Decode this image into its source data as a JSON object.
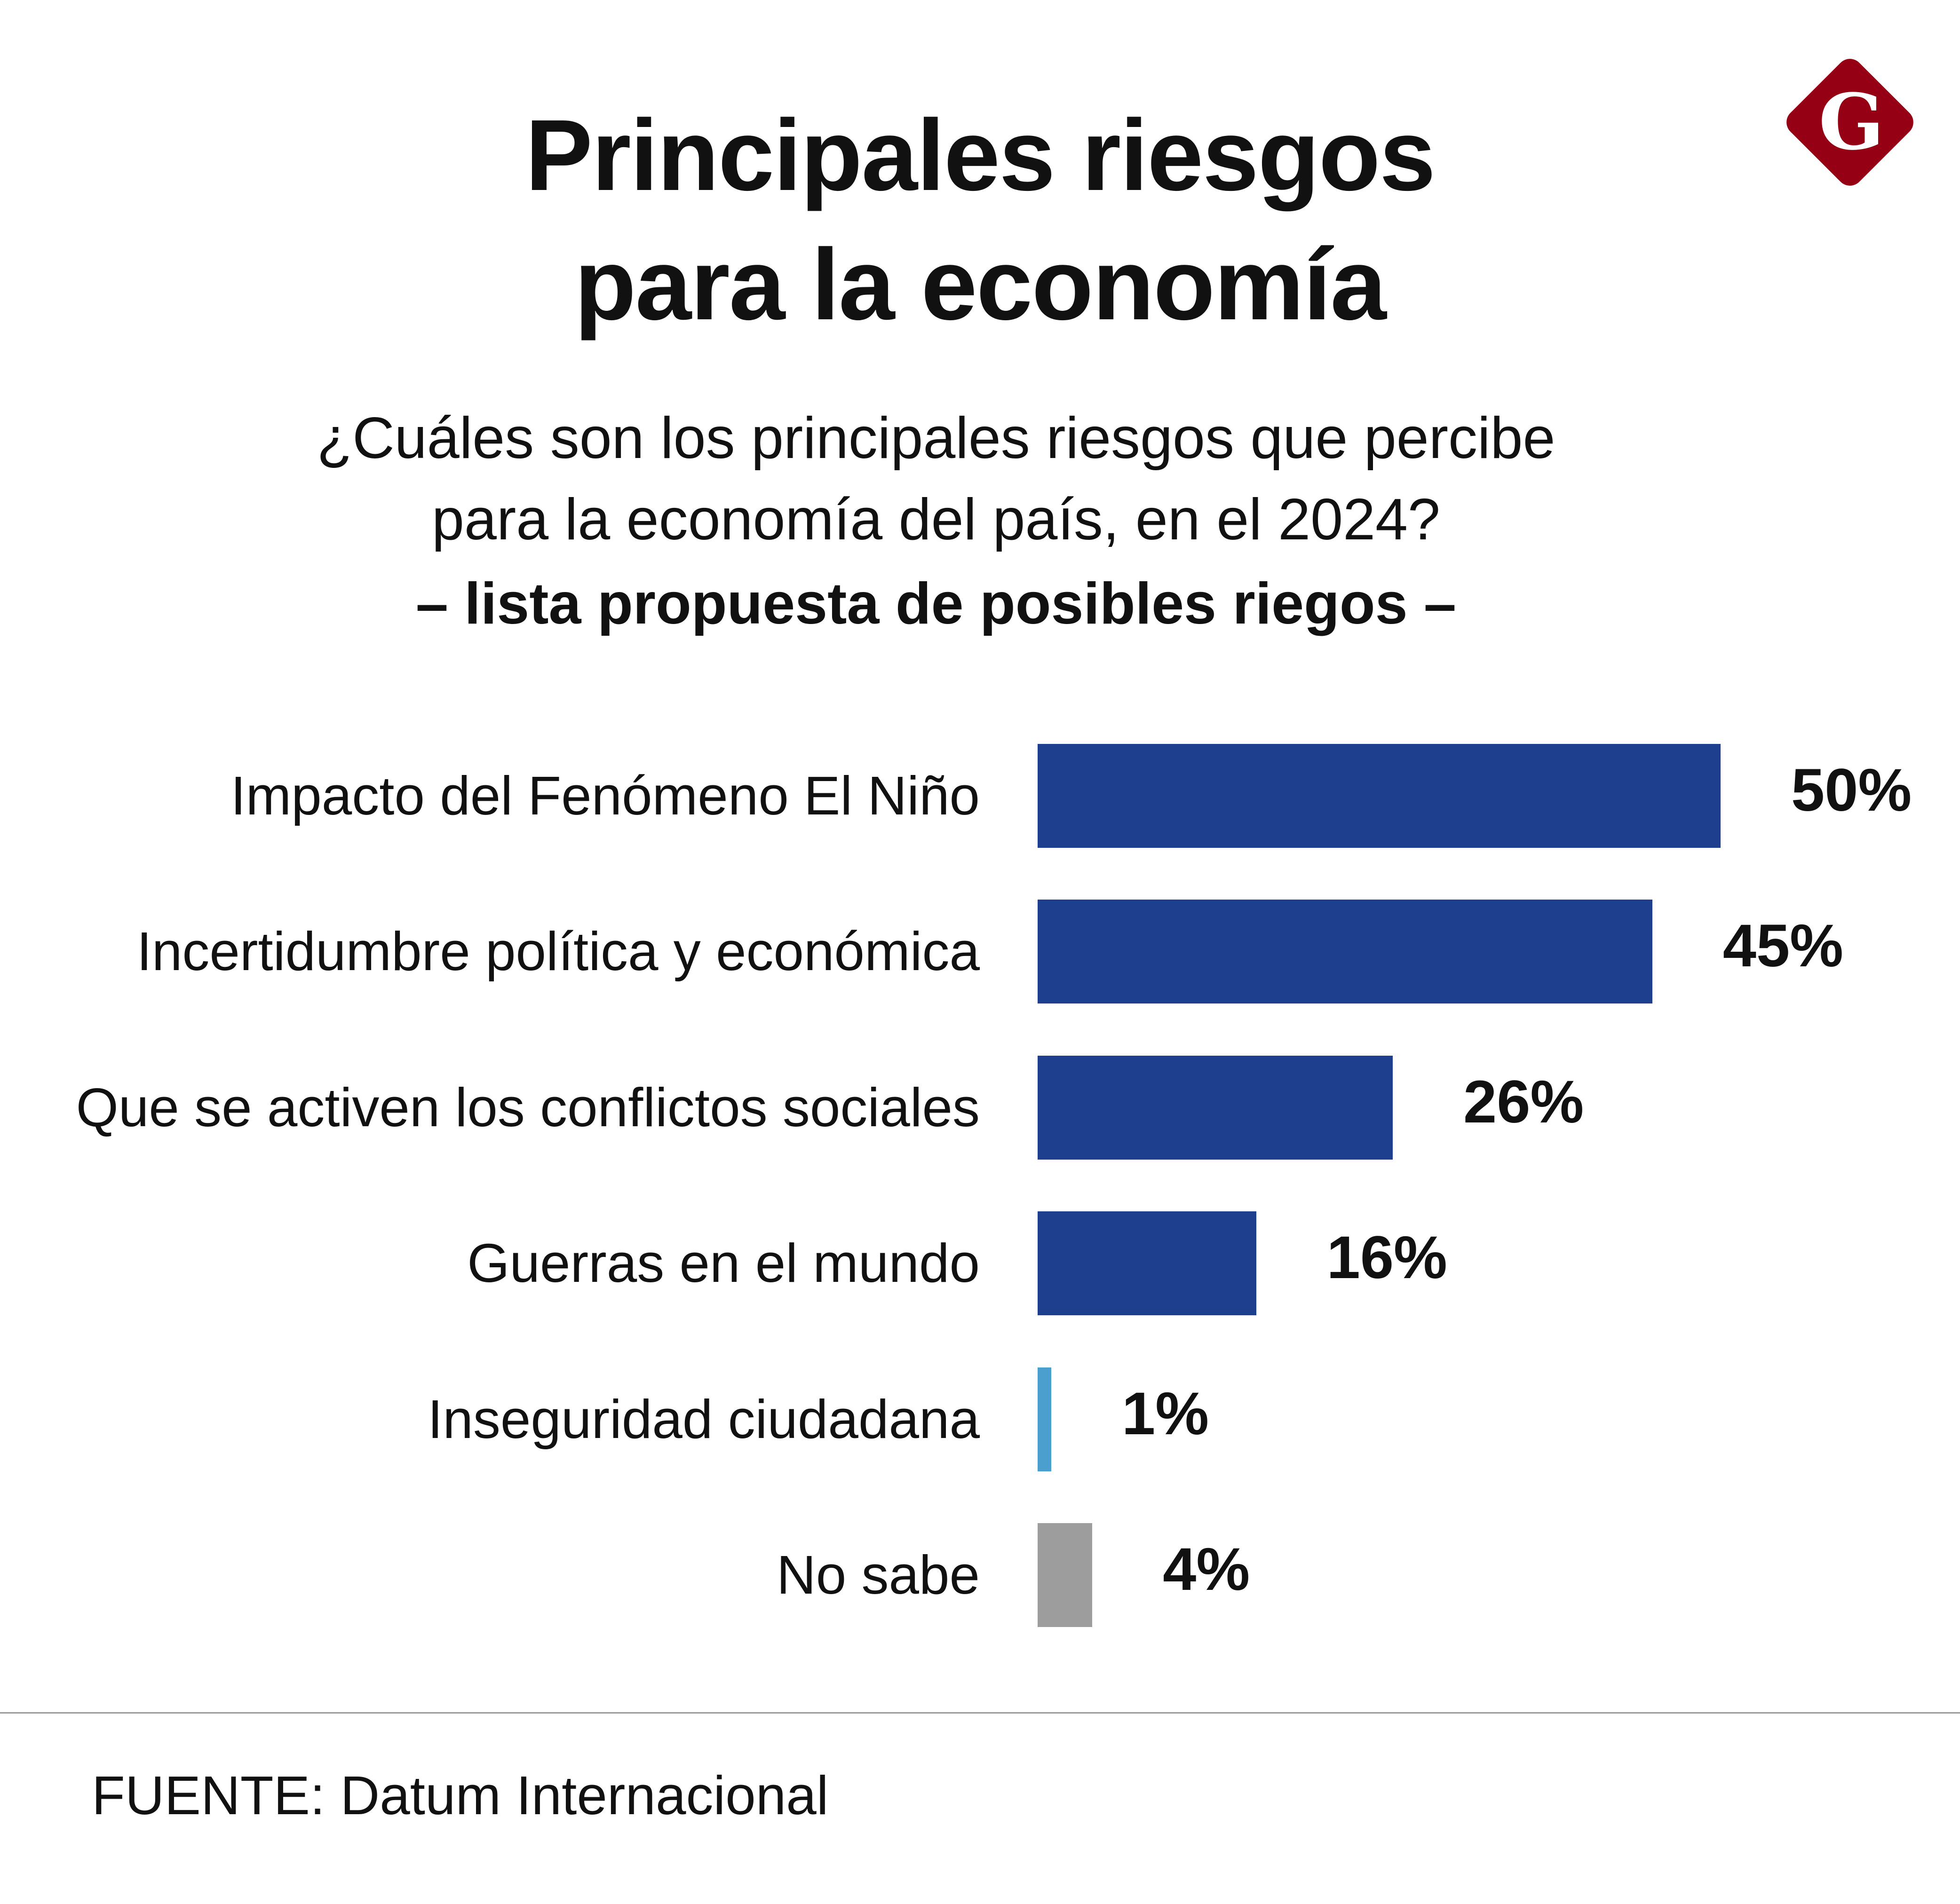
{
  "header": {
    "title_line1": "Principales riesgos",
    "title_line2": "para la economía",
    "question_line1": "¿Cuáles son los principales riesgos que percibe",
    "question_line2": "para la economía del país, en el 2024?",
    "note": "– lista propuesta de posibles riegos –"
  },
  "logo": {
    "letter": "G",
    "color": "#960014"
  },
  "chart_data": {
    "type": "bar",
    "orientation": "horizontal",
    "categories": [
      "Impacto del Fenómeno El Niño",
      "Incertidumbre política y económica",
      "Que se activen los conflictos sociales",
      "Guerras en el mundo",
      "Inseguridad ciudadana",
      "No sabe"
    ],
    "values": [
      50,
      45,
      26,
      16,
      1,
      4
    ],
    "value_labels": [
      "50%",
      "45%",
      "26%",
      "16%",
      "1%",
      "4%"
    ],
    "colors": [
      "#1d3f8d",
      "#1d3f8d",
      "#1d3f8d",
      "#1d3f8d",
      "#4a9fcf",
      "#9d9d9d"
    ],
    "unit": "%",
    "xlim": [
      0,
      50
    ],
    "grid": false
  },
  "footer": {
    "source": "FUENTE: Datum Internacional"
  }
}
